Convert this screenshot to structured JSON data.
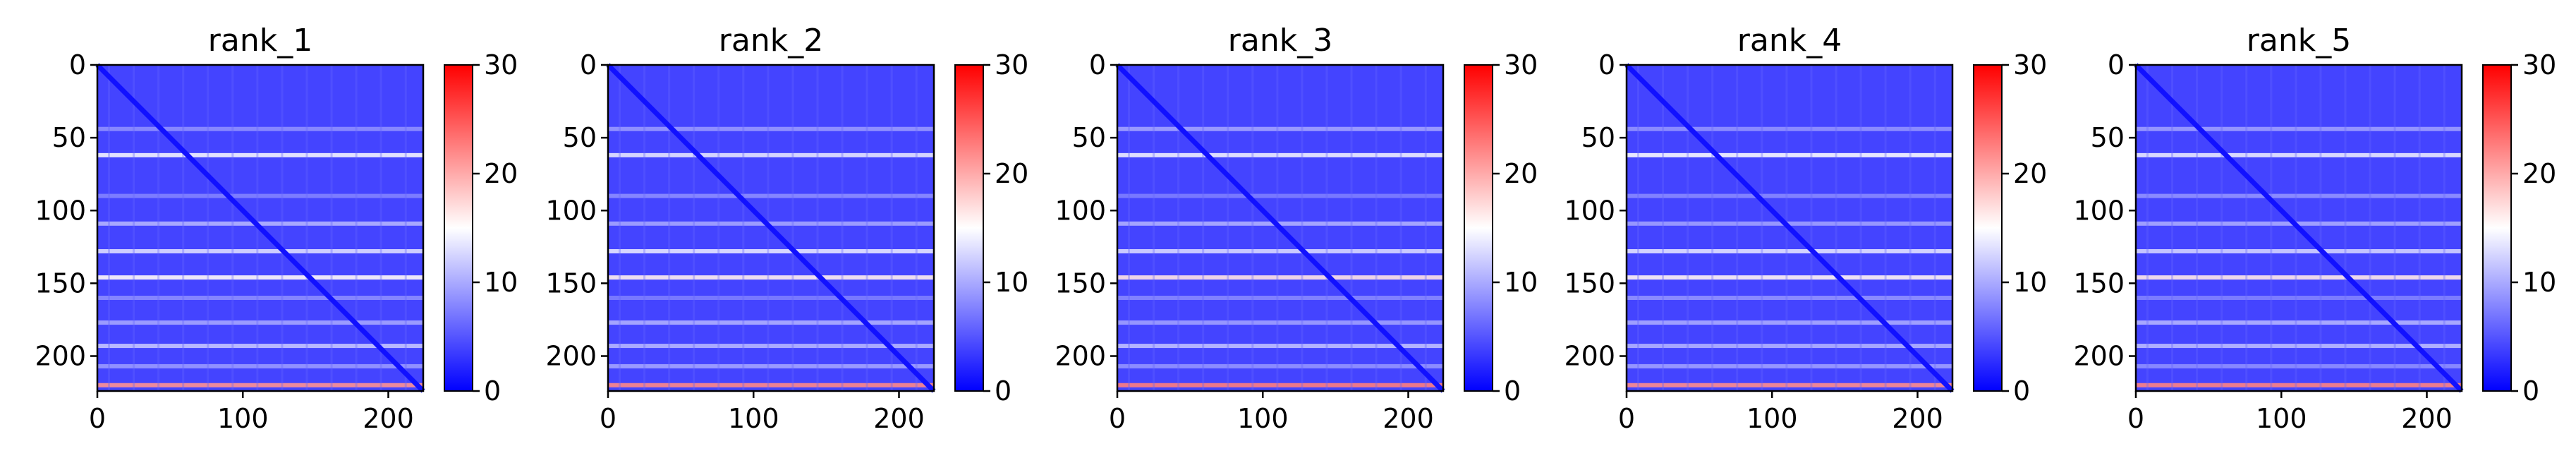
{
  "chart_data": {
    "type": "heatmap",
    "colormap": {
      "name": "bwr",
      "low": "#0000ff",
      "mid": "#ffffff",
      "high": "#ff0000"
    },
    "colorbar": {
      "range": [
        0,
        30
      ],
      "ticks": [
        0,
        10,
        20,
        30
      ]
    },
    "x_range": [
      0,
      224
    ],
    "y_range": [
      0,
      224
    ],
    "x_ticks": [
      0,
      100,
      200
    ],
    "y_ticks": [
      0,
      50,
      100,
      150,
      200
    ],
    "panels": [
      {
        "title": "rank_1"
      },
      {
        "title": "rank_2"
      },
      {
        "title": "rank_3"
      },
      {
        "title": "rank_4"
      },
      {
        "title": "rank_5"
      }
    ],
    "bright_rows": [
      {
        "y": 44,
        "level": 9
      },
      {
        "y": 62,
        "level": 14
      },
      {
        "y": 90,
        "level": 8
      },
      {
        "y": 109,
        "level": 10
      },
      {
        "y": 128,
        "level": 13
      },
      {
        "y": 146,
        "level": 16
      },
      {
        "y": 160,
        "level": 8
      },
      {
        "y": 177,
        "level": 10
      },
      {
        "y": 193,
        "level": 11
      },
      {
        "y": 207,
        "level": 9
      },
      {
        "y": 220,
        "level": 22
      }
    ],
    "background_level": 4,
    "diagonal_level": 1
  }
}
